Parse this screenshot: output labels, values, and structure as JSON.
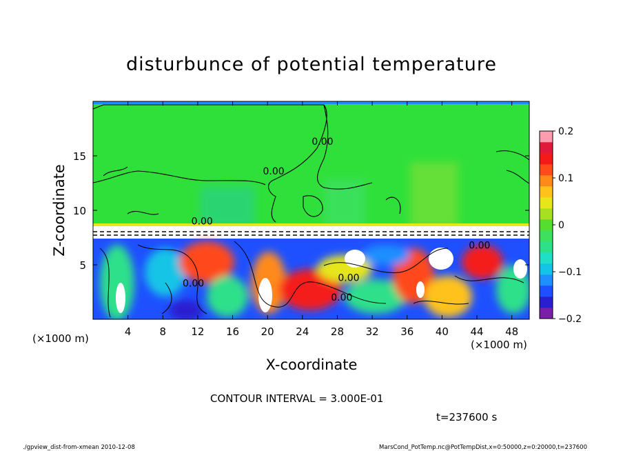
{
  "chart_data": {
    "type": "heatmap",
    "title": "disturbunce of potential temperature",
    "xlabel": "X-coordinate",
    "ylabel": "Z-coordinate",
    "x_unit": "(×1000 m)",
    "y_unit": "(×1000 m)",
    "xlim": [
      0,
      50
    ],
    "ylim": [
      0,
      20
    ],
    "x_ticks": [
      4,
      8,
      12,
      16,
      20,
      24,
      28,
      32,
      36,
      40,
      44,
      48
    ],
    "x_tick_labels": [
      "4",
      "8",
      "12",
      "16",
      "20",
      "24",
      "28",
      "32",
      "36",
      "40",
      "44",
      "48"
    ],
    "y_ticks": [
      5,
      10,
      15
    ],
    "y_tick_labels": [
      "5",
      "10",
      "15"
    ],
    "colorbar": {
      "range": [
        -0.2,
        0.2
      ],
      "ticks": [
        0.2,
        0.1,
        0,
        -0.1,
        -0.2
      ],
      "tick_labels": [
        "0.2",
        "0.1",
        "0",
        "−0.1",
        "−0.2"
      ],
      "colors": [
        "#7a1fa8",
        "#2a1fcf",
        "#1e50ff",
        "#1f8fff",
        "#14c4e6",
        "#1fe0c6",
        "#2fe08a",
        "#3ee060",
        "#55dd30",
        "#a6e020",
        "#e6e61a",
        "#ffc21a",
        "#ff8a1a",
        "#ff4a1a",
        "#f51a1a",
        "#e01a3a",
        "#ff9cb0"
      ]
    },
    "contour_labels": [
      {
        "text": "0.00",
        "x": 20.7,
        "z": 13.3
      },
      {
        "text": "0.00",
        "x": 12.5,
        "z": 8.7
      },
      {
        "text": "0.00",
        "x": 26.3,
        "z": 16.0
      },
      {
        "text": "0.00",
        "x": 11.5,
        "z": 3.0
      },
      {
        "text": "0.00",
        "x": 29.3,
        "z": 3.5
      },
      {
        "text": "0.00",
        "x": 28.5,
        "z": 1.7
      },
      {
        "text": "0.00",
        "x": 44.3,
        "z": 6.5
      }
    ],
    "contour_interval": "CONTOUR INTERVAL = 3.000E-01",
    "time_label": "t=237600 s",
    "footer_left": "./gpview_dist-from-xmean   2010-12-08",
    "footer_right": "MarsCond_PotTemp.nc@PotTempDist,x=0:50000,z=0:20000,t=237600"
  }
}
